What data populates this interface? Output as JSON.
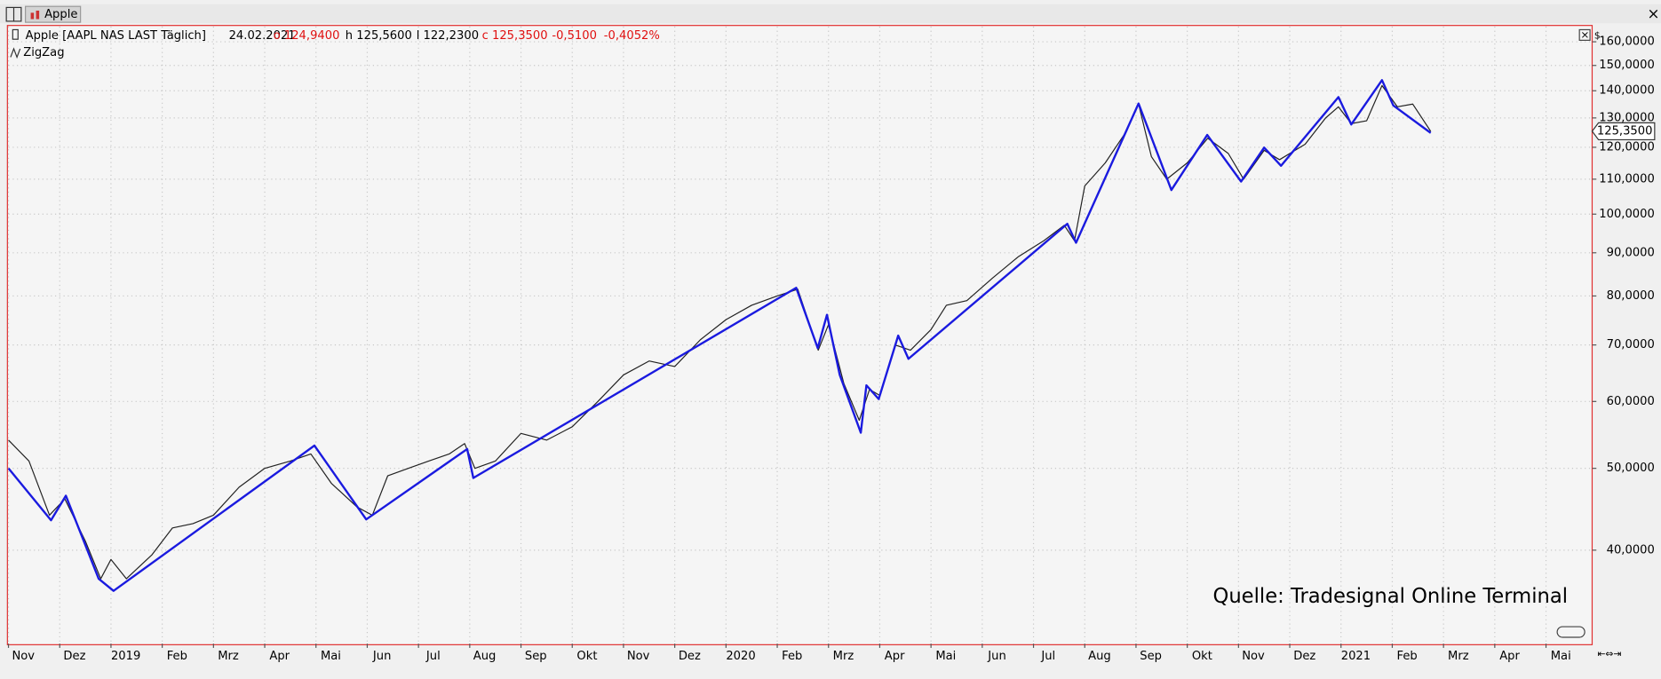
{
  "window": {
    "tab": "Apple"
  },
  "chart_data": {
    "type": "line",
    "log_y": true,
    "grid": true,
    "legend": {
      "date": "24.02.2021",
      "open": "o 124,9400",
      "high": "h 125,5600",
      "low": "l 122,2300",
      "close": "c 125,3500",
      "change": "-0,5100",
      "change_pct": "-0,4052%"
    },
    "y_unit": "$",
    "annotation": "Quelle: Tradesignal Online Terminal",
    "last_price": {
      "value": 125.35,
      "label": "125,3500"
    },
    "xlim": [
      0,
      30.9
    ],
    "xticks": [
      {
        "value": 0,
        "label": "Nov"
      },
      {
        "value": 1,
        "label": "Dez"
      },
      {
        "value": 2,
        "label": "2019"
      },
      {
        "value": 3,
        "label": "Feb"
      },
      {
        "value": 4,
        "label": "Mrz"
      },
      {
        "value": 5,
        "label": "Apr"
      },
      {
        "value": 6,
        "label": "Mai"
      },
      {
        "value": 7,
        "label": "Jun"
      },
      {
        "value": 8,
        "label": "Jul"
      },
      {
        "value": 9,
        "label": "Aug"
      },
      {
        "value": 10,
        "label": "Sep"
      },
      {
        "value": 11,
        "label": "Okt"
      },
      {
        "value": 12,
        "label": "Nov"
      },
      {
        "value": 13,
        "label": "Dez"
      },
      {
        "value": 14,
        "label": "2020"
      },
      {
        "value": 15,
        "label": "Feb"
      },
      {
        "value": 16,
        "label": "Mrz"
      },
      {
        "value": 17,
        "label": "Apr"
      },
      {
        "value": 18,
        "label": "Mai"
      },
      {
        "value": 19,
        "label": "Jun"
      },
      {
        "value": 20,
        "label": "Jul"
      },
      {
        "value": 21,
        "label": "Aug"
      },
      {
        "value": 22,
        "label": "Sep"
      },
      {
        "value": 23,
        "label": "Okt"
      },
      {
        "value": 24,
        "label": "Nov"
      },
      {
        "value": 25,
        "label": "Dez"
      },
      {
        "value": 26,
        "label": "2021"
      },
      {
        "value": 27,
        "label": "Feb"
      },
      {
        "value": 28,
        "label": "Mrz"
      },
      {
        "value": 29,
        "label": "Apr"
      },
      {
        "value": 30,
        "label": "Mai"
      }
    ],
    "ylim": [
      31,
      166.8
    ],
    "yticks": [
      {
        "value": 40,
        "label": "40,0000"
      },
      {
        "value": 50,
        "label": "50,0000"
      },
      {
        "value": 60,
        "label": "60,0000"
      },
      {
        "value": 70,
        "label": "70,0000"
      },
      {
        "value": 80,
        "label": "80,0000"
      },
      {
        "value": 90,
        "label": "90,0000"
      },
      {
        "value": 100,
        "label": "100,0000"
      },
      {
        "value": 110,
        "label": "110,0000"
      },
      {
        "value": 120,
        "label": "120,0000"
      },
      {
        "value": 130,
        "label": "130,0000"
      },
      {
        "value": 140,
        "label": "140,0000"
      },
      {
        "value": 150,
        "label": "150,0000"
      },
      {
        "value": 160,
        "label": "160,0000"
      }
    ],
    "series": [
      {
        "name": "Apple [AAPL NAS LAST Täglich]",
        "color": "#222222",
        "width": 1,
        "x": [
          0,
          0.4,
          0.8,
          1.1,
          1.5,
          1.8,
          2.0,
          2.3,
          2.8,
          3.2,
          3.6,
          4.0,
          4.5,
          5.0,
          5.5,
          5.9,
          6.3,
          6.8,
          7.1,
          7.4,
          7.8,
          8.2,
          8.6,
          8.9,
          9.1,
          9.5,
          10.0,
          10.5,
          11.0,
          11.5,
          12.0,
          12.5,
          13.0,
          13.5,
          14.0,
          14.5,
          15.0,
          15.4,
          15.8,
          16.0,
          16.3,
          16.6,
          16.8,
          17.0,
          17.3,
          17.6,
          18.0,
          18.3,
          18.7,
          19.2,
          19.7,
          20.2,
          20.6,
          20.8,
          21.0,
          21.4,
          21.8,
          22.05,
          22.3,
          22.6,
          23.0,
          23.4,
          23.8,
          24.1,
          24.5,
          24.8,
          25.3,
          25.7,
          25.95,
          26.2,
          26.5,
          26.8,
          27.1,
          27.4,
          27.75
        ],
        "values": [
          54,
          51,
          44,
          46,
          41,
          37,
          39,
          37,
          39.5,
          42.5,
          43,
          44,
          47.5,
          50,
          51,
          52,
          48,
          45,
          44,
          49,
          50,
          51,
          52,
          53.5,
          50,
          51,
          55,
          54,
          56,
          60,
          64.5,
          67,
          66,
          71,
          75,
          78,
          80,
          81.5,
          69,
          74,
          63,
          57,
          62,
          61,
          70,
          69,
          73,
          78,
          79,
          84,
          89,
          93,
          97,
          93,
          108,
          115,
          125,
          135,
          117,
          110,
          115,
          123,
          118,
          110,
          119,
          116,
          121,
          130,
          134,
          128,
          129,
          142,
          134,
          135,
          125.35
        ]
      },
      {
        "name": "ZigZag",
        "color": "#1a1adf",
        "width": 2,
        "x": [
          0,
          0.83,
          1.12,
          1.76,
          2.05,
          5.97,
          6.98,
          8.95,
          9.07,
          15.37,
          15.79,
          15.97,
          16.22,
          16.63,
          16.74,
          16.98,
          17.36,
          17.56,
          20.66,
          20.83,
          22.05,
          22.69,
          23.39,
          24.05,
          24.5,
          24.83,
          25.95,
          26.2,
          26.8,
          27.02,
          27.75
        ],
        "values": [
          50,
          43.4,
          46.4,
          37.0,
          35.8,
          53.2,
          43.5,
          52.7,
          48.7,
          81.8,
          69.4,
          76.0,
          64.5,
          55.1,
          62.7,
          60.4,
          71.8,
          67.4,
          97.4,
          92.5,
          135.2,
          106.8,
          124.1,
          109.3,
          119.9,
          114.1,
          137.6,
          127.7,
          144.1,
          134.5,
          124.8
        ]
      }
    ]
  }
}
